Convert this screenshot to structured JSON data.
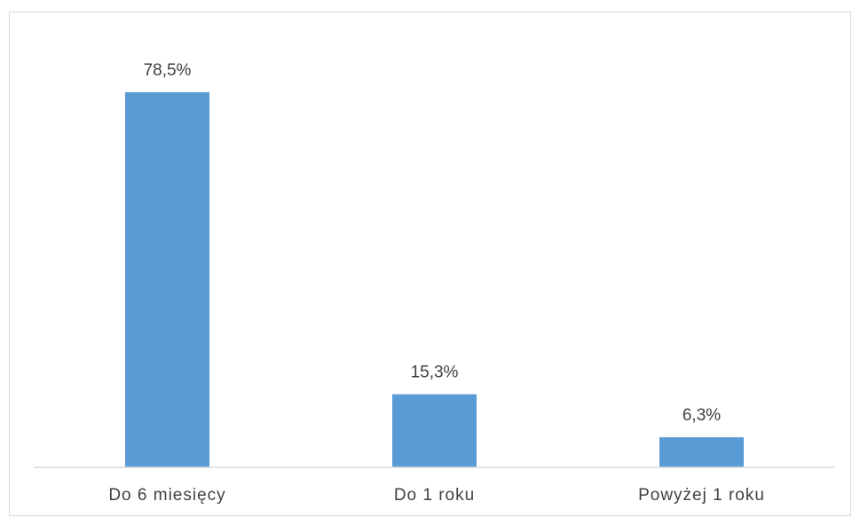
{
  "chart_data": {
    "type": "bar",
    "categories": [
      "Do 6 miesięcy",
      "Do 1 roku",
      "Powyżej 1 roku"
    ],
    "values": [
      78.5,
      15.3,
      6.3
    ],
    "data_labels": [
      "78,5%",
      "15,3%",
      "6,3%"
    ],
    "ylim": [
      0,
      90
    ],
    "grid": false,
    "legend": "none",
    "bar_color": "#5b9bd5",
    "axis_color": "#d9d9d9",
    "text_color": "#404040"
  }
}
